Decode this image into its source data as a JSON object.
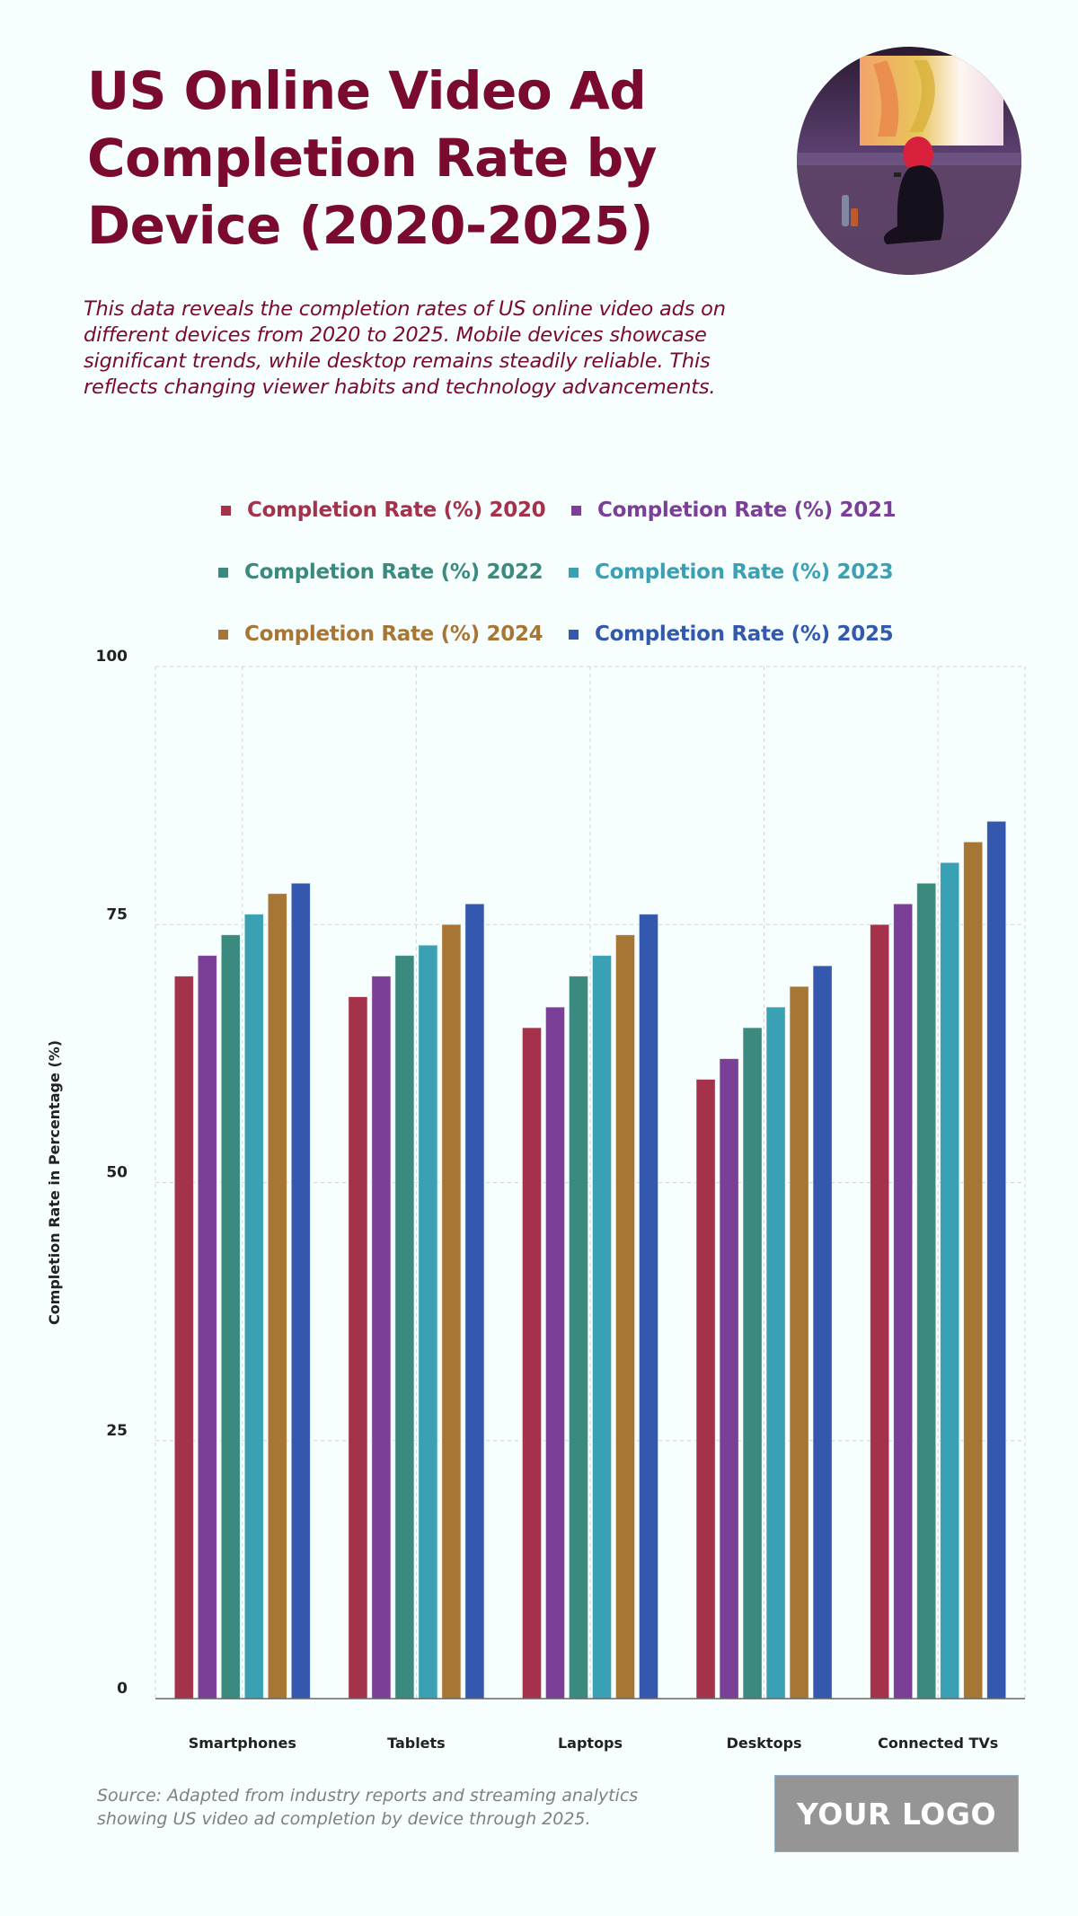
{
  "header": {
    "title_lines": [
      "US Online Video Ad",
      "Completion Rate by",
      "Device (2020-2025)"
    ],
    "description_lines": [
      "This data reveals the completion rates of US online video ads on",
      "different devices from 2020 to 2025. Mobile devices showcase",
      "significant trends, while desktop remains steadily reliable. This",
      "reflects changing viewer habits and technology advancements."
    ],
    "photo": "person-sitting-with-phone-photo"
  },
  "colors": {
    "title": "#7a0a2e",
    "background": "#f6fefe",
    "series": [
      "#a3324a",
      "#7b3f98",
      "#3b8a7f",
      "#3aa0b4",
      "#a87634",
      "#3358ad"
    ]
  },
  "chart_data": {
    "type": "bar",
    "title": "US Online Video Ad Completion Rate by Device (2020-2025)",
    "xlabel": "",
    "ylabel": "Completion Rate in Percentage (%)",
    "ylim": [
      0,
      100
    ],
    "yticks": [
      0,
      25,
      50,
      75,
      100
    ],
    "grid": true,
    "legend_position": "top",
    "categories": [
      "Smartphones",
      "Tablets",
      "Laptops",
      "Desktops",
      "Connected TVs"
    ],
    "series": [
      {
        "name": "Completion Rate (%) 2020",
        "values": [
          70,
          68,
          65,
          60,
          75
        ]
      },
      {
        "name": "Completion Rate (%) 2021",
        "values": [
          72,
          70,
          67,
          62,
          77
        ]
      },
      {
        "name": "Completion Rate (%) 2022",
        "values": [
          74,
          72,
          70,
          65,
          79
        ]
      },
      {
        "name": "Completion Rate (%) 2023",
        "values": [
          76,
          73,
          72,
          67,
          81
        ]
      },
      {
        "name": "Completion Rate (%) 2024",
        "values": [
          78,
          75,
          74,
          69,
          83
        ]
      },
      {
        "name": "Completion Rate (%) 2025",
        "values": [
          79,
          77,
          76,
          71,
          85
        ]
      }
    ]
  },
  "footer": {
    "source_lines": [
      "Source: Adapted from industry reports and streaming analytics",
      "showing US video ad completion by device through 2025."
    ],
    "logo_text": "YOUR LOGO"
  }
}
